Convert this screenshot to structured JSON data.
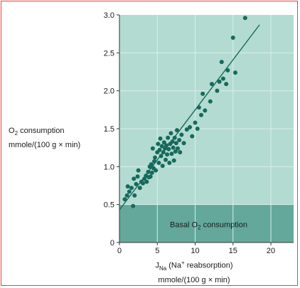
{
  "chart_data": {
    "type": "scatter",
    "ylabel_line1_prefix": "O",
    "ylabel_line1_sub": "2",
    "ylabel_line1_suffix": " consumption",
    "ylabel_line2": "mmole/(100 g × min)",
    "xlabel_main": "J",
    "xlabel_sub": "Na",
    "xlabel_mid": " (Na",
    "xlabel_sup": "+",
    "xlabel_end": " reabsorption)",
    "xlabel_line2": "mmole/(100 g × min)",
    "xlim": [
      0,
      23
    ],
    "ylim": [
      0,
      3.0
    ],
    "x_ticks": [
      0,
      5,
      10,
      15,
      20
    ],
    "y_ticks": [
      0,
      0.5,
      1.0,
      1.5,
      2.0,
      2.5,
      3.0
    ],
    "y_tick_labels": [
      "0",
      "0.5",
      "1.0",
      "1.5",
      "2.0",
      "2.5",
      "3.0"
    ],
    "grid": true,
    "basal_band": {
      "ymax": 0.5,
      "label_prefix": "Basal O",
      "label_sub": "2",
      "label_suffix": " consumption"
    },
    "fit_line": {
      "x": [
        0,
        18.5
      ],
      "y": [
        0.43,
        2.87
      ]
    },
    "points": [
      [
        0.7,
        0.57
      ],
      [
        1.0,
        0.62
      ],
      [
        1.1,
        0.74
      ],
      [
        1.3,
        0.67
      ],
      [
        1.6,
        0.72
      ],
      [
        1.8,
        0.48
      ],
      [
        1.9,
        0.84
      ],
      [
        2.0,
        0.62
      ],
      [
        2.2,
        0.77
      ],
      [
        2.4,
        0.87
      ],
      [
        2.5,
        0.95
      ],
      [
        2.7,
        0.72
      ],
      [
        2.9,
        0.8
      ],
      [
        3.1,
        0.78
      ],
      [
        3.3,
        0.84
      ],
      [
        3.5,
        0.88
      ],
      [
        3.6,
        0.8
      ],
      [
        3.8,
        0.93
      ],
      [
        3.9,
        0.86
      ],
      [
        4.0,
        1.0
      ],
      [
        4.1,
        0.87
      ],
      [
        4.2,
        1.03
      ],
      [
        4.3,
        0.92
      ],
      [
        4.4,
        1.24
      ],
      [
        4.5,
        0.98
      ],
      [
        4.6,
        1.07
      ],
      [
        4.7,
        1.12
      ],
      [
        4.8,
        0.95
      ],
      [
        5.0,
        1.19
      ],
      [
        5.1,
        1.3
      ],
      [
        5.2,
        1.05
      ],
      [
        5.3,
        1.22
      ],
      [
        5.4,
        1.37
      ],
      [
        5.5,
        1.14
      ],
      [
        5.6,
        1.27
      ],
      [
        5.7,
        1.01
      ],
      [
        5.8,
        1.19
      ],
      [
        5.9,
        1.32
      ],
      [
        6.0,
        1.24
      ],
      [
        6.1,
        1.09
      ],
      [
        6.2,
        1.28
      ],
      [
        6.3,
        1.16
      ],
      [
        6.4,
        1.38
      ],
      [
        6.5,
        1.23
      ],
      [
        6.6,
        1.05
      ],
      [
        6.7,
        1.3
      ],
      [
        6.8,
        1.44
      ],
      [
        6.9,
        1.17
      ],
      [
        7.0,
        1.33
      ],
      [
        7.1,
        1.25
      ],
      [
        7.2,
        1.08
      ],
      [
        7.3,
        1.38
      ],
      [
        7.4,
        1.2
      ],
      [
        7.5,
        1.31
      ],
      [
        7.6,
        1.48
      ],
      [
        7.7,
        1.24
      ],
      [
        7.9,
        1.35
      ],
      [
        8.0,
        1.19
      ],
      [
        8.2,
        1.42
      ],
      [
        8.5,
        1.31
      ],
      [
        8.9,
        1.49
      ],
      [
        9.3,
        1.52
      ],
      [
        9.6,
        1.4
      ],
      [
        10.0,
        1.58
      ],
      [
        10.3,
        1.5
      ],
      [
        10.5,
        1.78
      ],
      [
        10.8,
        1.68
      ],
      [
        11.0,
        1.96
      ],
      [
        11.3,
        1.74
      ],
      [
        12.0,
        1.86
      ],
      [
        12.2,
        2.09
      ],
      [
        12.9,
        2.0
      ],
      [
        13.2,
        2.12
      ],
      [
        13.5,
        2.38
      ],
      [
        13.7,
        2.16
      ],
      [
        14.3,
        2.27
      ],
      [
        14.1,
        2.09
      ],
      [
        15.0,
        2.7
      ],
      [
        15.3,
        2.24
      ],
      [
        16.6,
        2.96
      ]
    ]
  }
}
